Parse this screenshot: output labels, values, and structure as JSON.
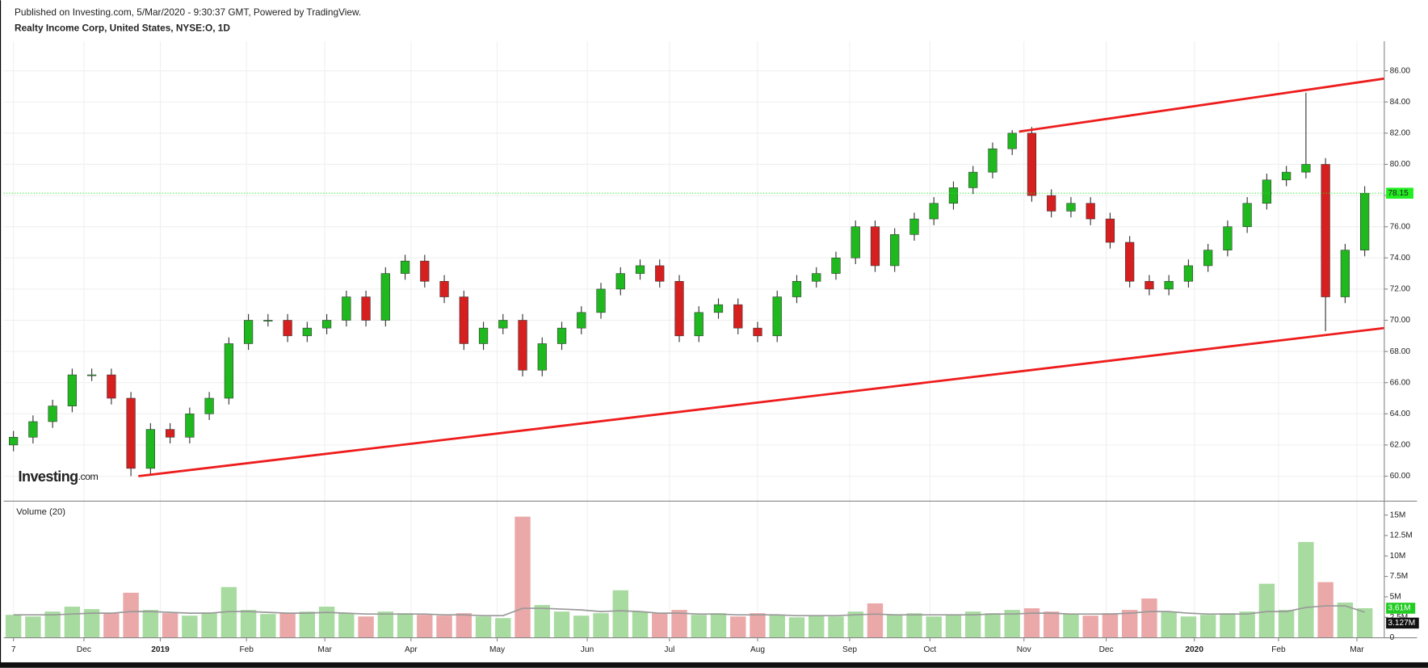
{
  "header": {
    "published": "Published on Investing.com, 5/Mar/2020 - 9:30:37 GMT, Powered by TradingView.",
    "logo_main": "Investing",
    "logo_suffix": ".com"
  },
  "chart_data": [
    {
      "type": "candlestick",
      "title": "Realty Income Corp, United States, NYSE:O, 1D",
      "open": [
        62.0,
        62.5,
        63.5,
        64.5,
        66.5,
        66.5,
        65.0,
        60.5,
        63.0,
        62.5,
        64.0,
        65.0,
        68.5,
        70.0,
        70.0,
        69.0,
        69.5,
        70.0,
        71.5,
        70.0,
        73.0,
        73.8,
        72.5,
        71.5,
        68.5,
        69.5,
        70.0,
        66.8,
        68.5,
        69.5,
        70.5,
        72.0,
        73.0,
        73.5,
        72.5,
        69.0,
        70.5,
        71.0,
        69.5,
        69.0,
        71.5,
        72.5,
        73.0,
        74.0,
        76.0,
        73.5,
        75.5,
        76.5,
        77.5,
        78.5,
        79.5,
        81.0,
        82.0,
        78.0,
        77.0,
        77.5,
        76.5,
        75.0,
        72.5,
        72.0,
        72.5,
        73.5,
        74.5,
        76.0,
        77.5,
        79.0,
        79.5,
        80.0,
        71.5,
        74.5
      ],
      "high": [
        62.9,
        63.9,
        64.9,
        66.9,
        66.9,
        66.9,
        65.4,
        63.4,
        63.4,
        64.4,
        65.4,
        68.9,
        70.4,
        70.4,
        70.4,
        69.9,
        70.4,
        71.9,
        71.9,
        73.4,
        74.2,
        74.2,
        72.9,
        71.9,
        69.9,
        70.4,
        70.4,
        68.9,
        69.9,
        70.9,
        72.4,
        73.4,
        73.9,
        73.9,
        72.9,
        70.9,
        71.4,
        71.4,
        69.9,
        71.9,
        72.9,
        73.4,
        74.4,
        76.4,
        76.4,
        75.9,
        76.9,
        77.9,
        78.9,
        79.9,
        81.4,
        82.2,
        82.4,
        78.4,
        77.9,
        77.9,
        76.9,
        75.4,
        72.9,
        72.9,
        73.9,
        74.9,
        76.4,
        77.9,
        79.4,
        79.9,
        84.6,
        80.4,
        74.9,
        78.6
      ],
      "low": [
        61.6,
        62.1,
        63.1,
        64.1,
        66.1,
        64.6,
        60.0,
        60.1,
        62.1,
        62.1,
        63.6,
        64.6,
        68.1,
        69.6,
        68.6,
        68.6,
        69.1,
        69.6,
        69.6,
        69.6,
        72.6,
        72.1,
        71.1,
        68.1,
        68.1,
        69.1,
        66.4,
        66.4,
        68.1,
        69.1,
        70.1,
        71.6,
        72.6,
        72.1,
        68.6,
        68.6,
        70.1,
        69.1,
        68.6,
        68.6,
        71.1,
        72.1,
        72.6,
        73.6,
        73.1,
        73.1,
        75.1,
        76.1,
        77.1,
        78.1,
        79.1,
        80.6,
        77.6,
        76.6,
        76.6,
        76.1,
        74.6,
        72.1,
        71.6,
        71.6,
        72.1,
        73.1,
        74.1,
        75.6,
        77.1,
        78.6,
        79.1,
        69.3,
        71.1,
        74.1
      ],
      "close": [
        62.5,
        63.5,
        64.5,
        66.5,
        66.5,
        65.0,
        60.5,
        63.0,
        62.5,
        64.0,
        65.0,
        68.5,
        70.0,
        70.0,
        69.0,
        69.5,
        70.0,
        71.5,
        70.0,
        73.0,
        73.8,
        72.5,
        71.5,
        68.5,
        69.5,
        70.0,
        66.8,
        68.5,
        69.5,
        70.5,
        72.0,
        73.0,
        73.5,
        72.5,
        69.0,
        70.5,
        71.0,
        69.5,
        69.0,
        71.5,
        72.5,
        73.0,
        74.0,
        76.0,
        73.5,
        75.5,
        76.5,
        77.5,
        78.5,
        79.5,
        81.0,
        82.0,
        78.0,
        77.0,
        77.5,
        76.5,
        75.0,
        72.5,
        72.0,
        72.5,
        73.5,
        74.5,
        76.0,
        77.5,
        79.0,
        79.5,
        80.0,
        71.5,
        74.5,
        78.15
      ],
      "up_color": "#1fb81f",
      "down_color": "#d61f1f",
      "ylim": [
        58.4,
        87.9
      ],
      "yticks": [
        {
          "value": 60,
          "label": "60.00"
        },
        {
          "value": 62,
          "label": "62.00"
        },
        {
          "value": 64,
          "label": "64.00"
        },
        {
          "value": 66,
          "label": "66.00"
        },
        {
          "value": 68,
          "label": "68.00"
        },
        {
          "value": 70,
          "label": "70.00"
        },
        {
          "value": 72,
          "label": "72.00"
        },
        {
          "value": 74,
          "label": "74.00"
        },
        {
          "value": 76,
          "label": "76.00"
        },
        {
          "value": 78,
          "label": "78.00"
        },
        {
          "value": 80,
          "label": "80.00"
        },
        {
          "value": 82,
          "label": "82.00"
        },
        {
          "value": 84,
          "label": "84.00"
        },
        {
          "value": 86,
          "label": "86.00"
        }
      ],
      "grid": true,
      "last_price": 78.15,
      "last_price_color": "#22ee22",
      "trendlines": [
        {
          "x": [
            51.35,
            70
          ],
          "y": [
            82.1,
            85.5
          ]
        },
        {
          "x": [
            6.38,
            70
          ],
          "y": [
            60.0,
            69.5
          ]
        }
      ],
      "trendline_color": "#ee1c1c"
    },
    {
      "type": "volume",
      "title": "Volume (20)",
      "values": [
        2.8,
        2.6,
        3.2,
        3.8,
        3.5,
        3.0,
        5.5,
        3.4,
        3.0,
        2.7,
        3.1,
        6.2,
        3.4,
        2.9,
        3.0,
        3.2,
        3.8,
        3.0,
        2.6,
        3.2,
        3.0,
        2.8,
        2.7,
        3.0,
        2.6,
        2.4,
        14.8,
        4.0,
        3.2,
        2.7,
        3.0,
        5.8,
        3.2,
        3.0,
        3.4,
        2.8,
        3.0,
        2.6,
        3.0,
        2.8,
        2.5,
        2.7,
        2.6,
        3.2,
        4.2,
        2.8,
        3.0,
        2.6,
        2.8,
        3.2,
        3.0,
        3.4,
        3.6,
        3.2,
        2.9,
        2.7,
        3.0,
        3.4,
        4.8,
        3.2,
        2.6,
        2.8,
        3.0,
        3.2,
        6.6,
        3.4,
        11.7,
        6.8,
        4.3,
        3.61
      ],
      "value_labels": [
        null,
        null,
        null,
        null,
        null,
        null,
        null,
        null,
        null,
        null,
        null,
        null,
        null,
        null,
        null,
        null,
        null,
        null,
        null,
        null,
        null,
        null,
        null,
        null,
        null,
        null,
        null,
        null,
        null,
        null,
        null,
        null,
        null,
        null,
        null,
        null,
        null,
        null,
        null,
        null,
        null,
        null,
        null,
        null,
        null,
        null,
        null,
        null,
        null,
        null,
        null,
        null,
        null,
        null,
        null,
        null,
        null,
        null,
        null,
        null,
        null,
        null,
        null,
        null,
        null,
        null,
        null,
        null,
        null,
        "3.61M"
      ],
      "up_color": "#a8dba0",
      "down_color": "#eaa8a8",
      "ma": {
        "color": "#999999",
        "values": [
          2.8,
          2.8,
          2.8,
          2.9,
          3.0,
          3.0,
          3.2,
          3.2,
          3.1,
          3.0,
          3.0,
          3.2,
          3.2,
          3.1,
          3.0,
          3.0,
          3.1,
          3.0,
          2.9,
          2.9,
          2.9,
          2.9,
          2.8,
          2.8,
          2.7,
          2.7,
          3.6,
          3.6,
          3.5,
          3.4,
          3.2,
          3.3,
          3.2,
          3.0,
          3.0,
          2.9,
          2.9,
          2.8,
          2.8,
          2.8,
          2.7,
          2.7,
          2.7,
          2.8,
          2.9,
          2.8,
          2.8,
          2.8,
          2.8,
          2.8,
          2.9,
          2.9,
          3.0,
          3.0,
          2.9,
          2.9,
          2.9,
          3.0,
          3.2,
          3.2,
          3.0,
          2.9,
          2.9,
          2.9,
          3.2,
          3.2,
          3.7,
          3.9,
          3.9,
          3.127
        ],
        "value_labels": [
          null,
          null,
          null,
          null,
          null,
          null,
          null,
          null,
          null,
          null,
          null,
          null,
          null,
          null,
          null,
          null,
          null,
          null,
          null,
          null,
          null,
          null,
          null,
          null,
          null,
          null,
          null,
          null,
          null,
          null,
          null,
          null,
          null,
          null,
          null,
          null,
          null,
          null,
          null,
          null,
          null,
          null,
          null,
          null,
          null,
          null,
          null,
          null,
          null,
          null,
          null,
          null,
          null,
          null,
          null,
          null,
          null,
          null,
          null,
          null,
          null,
          null,
          null,
          null,
          null,
          null,
          null,
          null,
          null,
          "3.127M"
        ]
      },
      "ylim": [
        0,
        16.7
      ],
      "yticks": [
        0,
        {
          "value": 2.5,
          "label": "2.5M"
        },
        {
          "value": 5,
          "label": "5M"
        },
        {
          "value": 7.5,
          "label": "7.5M"
        },
        {
          "value": 10,
          "label": "10M"
        },
        {
          "value": 12.5,
          "label": "12.5M"
        },
        {
          "value": 15,
          "label": "15M"
        }
      ],
      "xlim": [
        -0.5,
        70
      ],
      "xticks": [
        {
          "value": 0,
          "label": "7"
        },
        {
          "value": 3.6,
          "label": "Dec"
        },
        {
          "value": 7.5,
          "label": "2019"
        },
        {
          "value": 11.9,
          "label": "Feb"
        },
        {
          "value": 15.9,
          "label": "Mar"
        },
        {
          "value": 20.3,
          "label": "Apr"
        },
        {
          "value": 24.7,
          "label": "May"
        },
        {
          "value": 29.3,
          "label": "Jun"
        },
        {
          "value": 33.5,
          "label": "Jul"
        },
        {
          "value": 38,
          "label": "Aug"
        },
        {
          "value": 42.7,
          "label": "Sep"
        },
        {
          "value": 46.8,
          "label": "Oct"
        },
        {
          "value": 51.6,
          "label": "Nov"
        },
        {
          "value": 55.8,
          "label": "Dec"
        },
        {
          "value": 60.3,
          "label": "2020"
        },
        {
          "value": 64.6,
          "label": "Feb"
        },
        {
          "value": 68.6,
          "label": "Mar"
        }
      ]
    }
  ]
}
